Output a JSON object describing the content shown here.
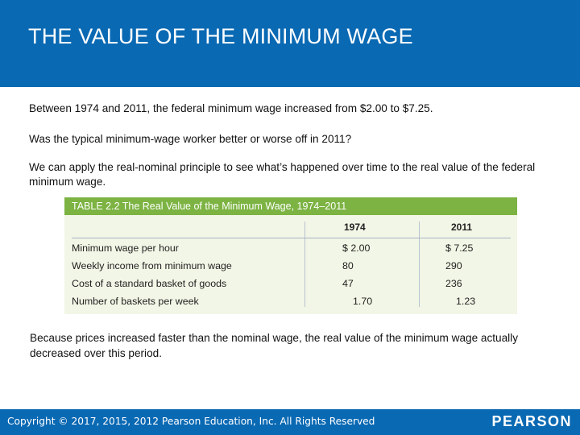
{
  "header": {
    "title": "THE VALUE OF THE MINIMUM WAGE"
  },
  "body": {
    "paragraph1": "Between 1974 and 2011, the federal minimum wage increased from $2.00 to $7.25.",
    "paragraph2": "Was the typical minimum-wage worker better or worse off in 2011?",
    "paragraph3": "We can apply the real-nominal principle to see what’s happened over time to the real value of the federal minimum wage."
  },
  "table": {
    "title": "TABLE 2.2  The Real Value of the Minimum Wage, 1974–2011",
    "columns": [
      "1974",
      "2011"
    ],
    "rows": [
      {
        "label": "Minimum wage per hour",
        "v1974": "$ 2.00",
        "v2011": "$ 7.25"
      },
      {
        "label": "Weekly income from minimum wage",
        "v1974": "80",
        "v2011": "290"
      },
      {
        "label": "Cost of a standard basket of goods",
        "v1974": "47",
        "v2011": "236"
      },
      {
        "label": "Number of baskets per week",
        "v1974": "1.70",
        "v2011": "1.23"
      }
    ]
  },
  "note": "Because prices increased faster than the nominal wage, the real value of the minimum wage actually decreased over this period.",
  "footer": {
    "copyright": "Copyright © 2017, 2015, 2012 Pearson Education, Inc. All Rights Reserved",
    "logo": "PEARSON"
  },
  "colors": {
    "brand_blue": "#0a69b3",
    "table_green": "#7cb342",
    "table_bg": "#f2f6e6"
  }
}
